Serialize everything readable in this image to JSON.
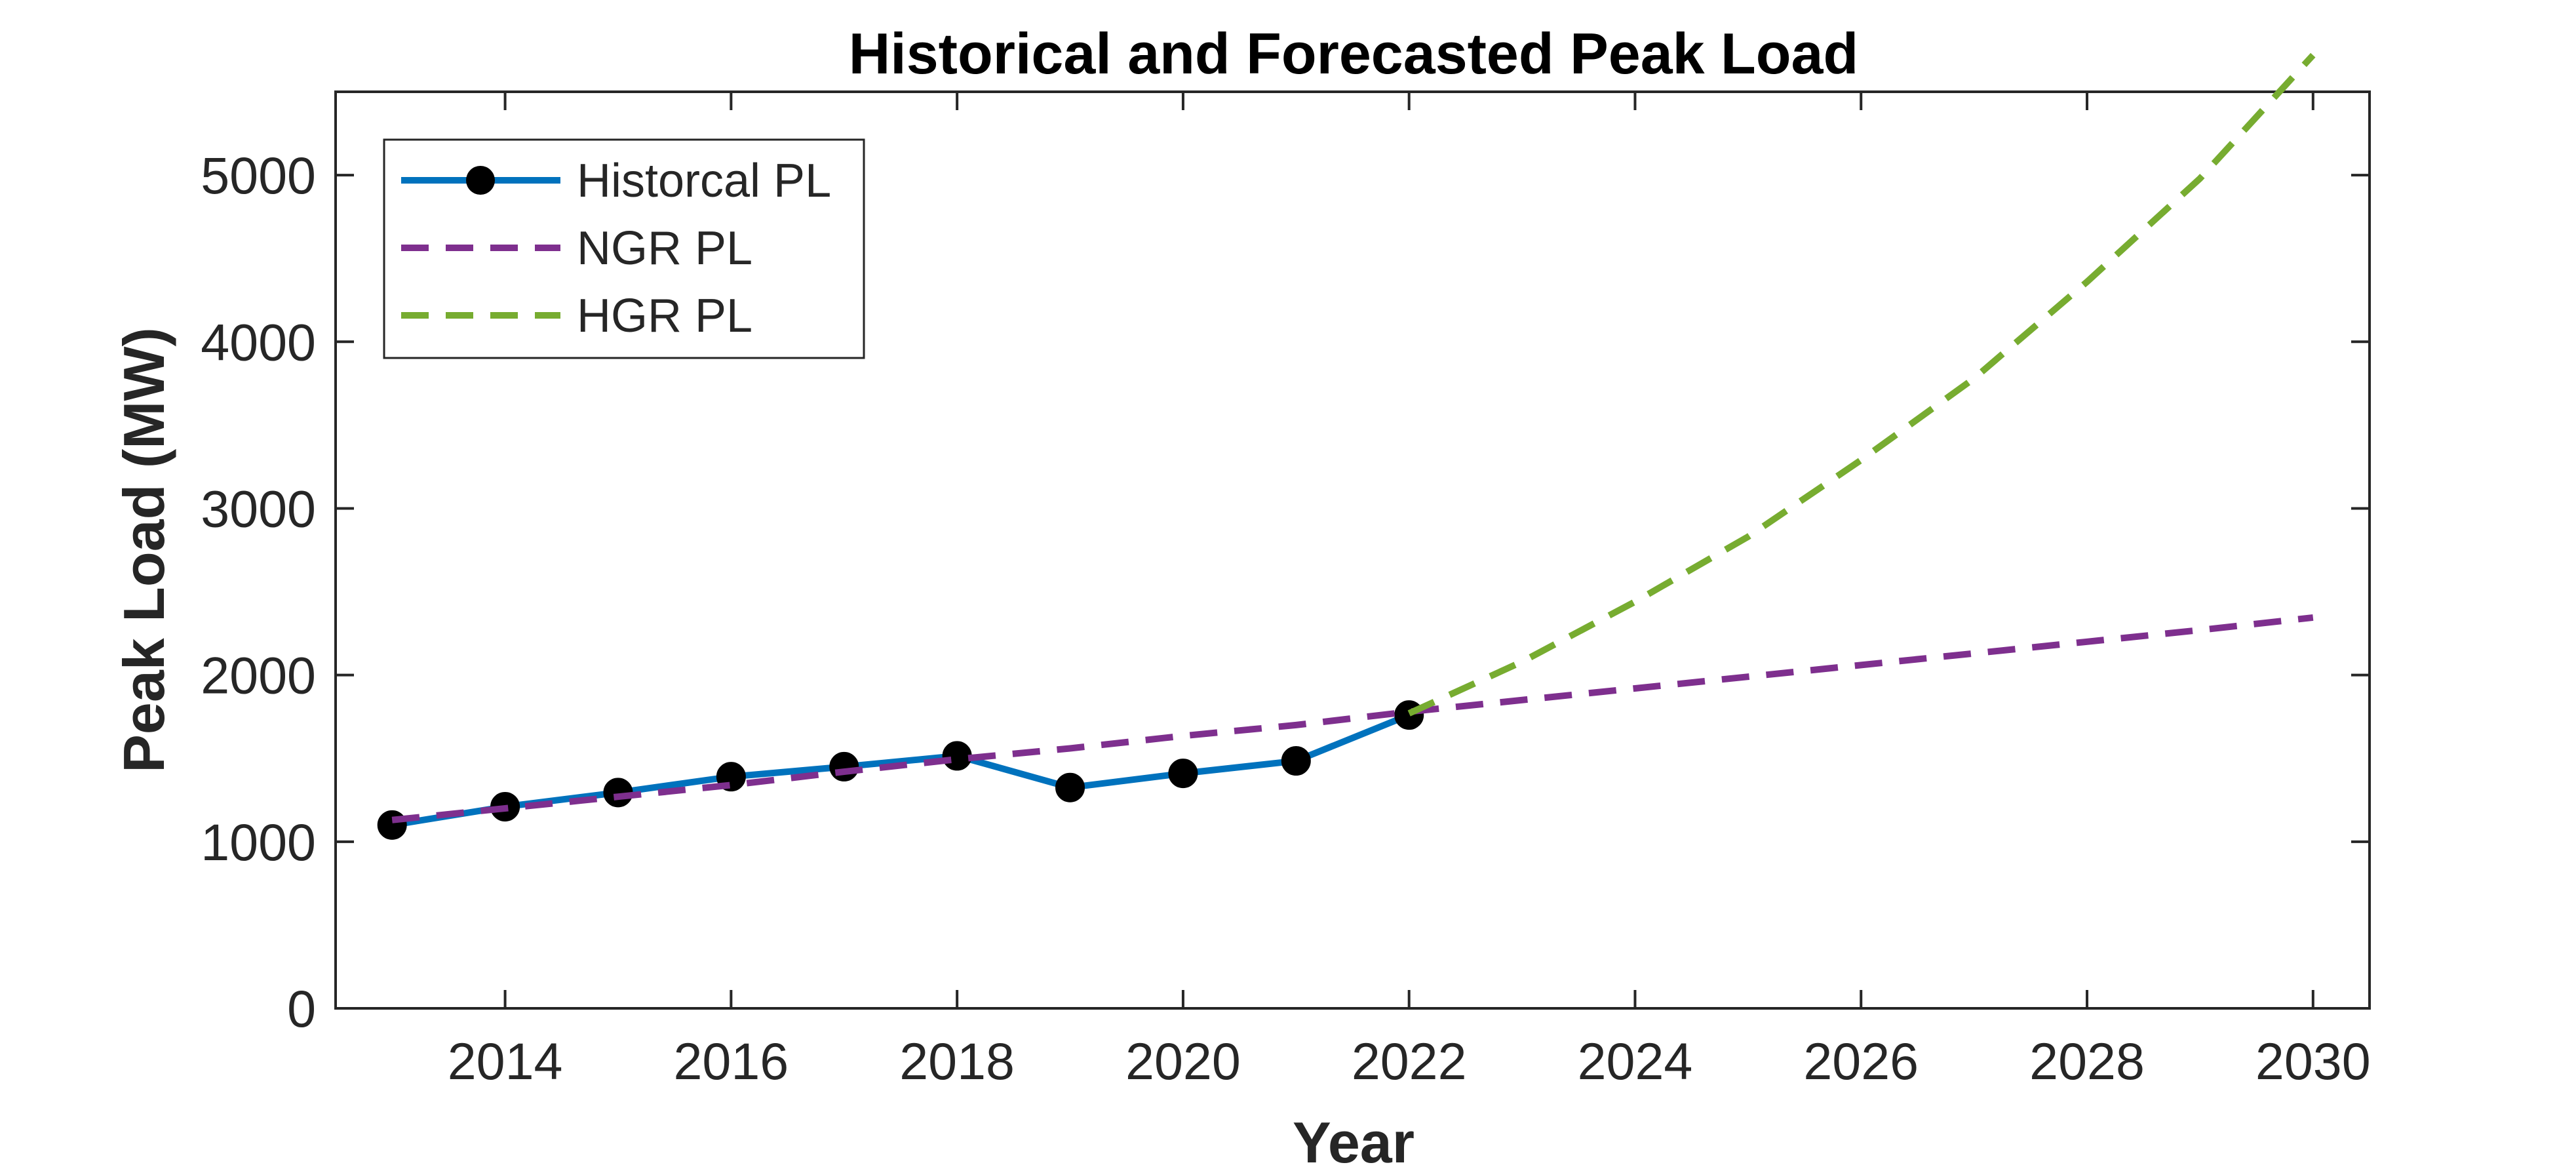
{
  "chart_data": {
    "type": "line",
    "title": "Historical and Forecasted Peak Load",
    "xlabel": "Year",
    "ylabel": "Peak Load (MW)",
    "xlim": [
      2012.5,
      2030.5
    ],
    "ylim": [
      0,
      5500
    ],
    "xticks": [
      2014,
      2016,
      2018,
      2020,
      2022,
      2024,
      2026,
      2028,
      2030
    ],
    "yticks": [
      0,
      1000,
      2000,
      3000,
      4000,
      5000
    ],
    "grid": false,
    "legend_position": "top-left",
    "series": [
      {
        "name": "Historcal PL",
        "color": "#0072BD",
        "style": "solid",
        "marker": "circle",
        "x": [
          2013,
          2014,
          2015,
          2016,
          2017,
          2018,
          2019,
          2020,
          2021,
          2022
        ],
        "y": [
          1100,
          1210,
          1295,
          1390,
          1450,
          1515,
          1325,
          1410,
          1485,
          1760
        ]
      },
      {
        "name": "NGR PL",
        "color": "#7E2F8E",
        "style": "dashed",
        "marker": "none",
        "x": [
          2013,
          2014,
          2015,
          2016,
          2017,
          2018,
          2019,
          2020,
          2021,
          2022,
          2023,
          2024,
          2025,
          2026,
          2027,
          2028,
          2029,
          2030
        ],
        "y": [
          1130,
          1200,
          1270,
          1340,
          1420,
          1495,
          1560,
          1635,
          1700,
          1780,
          1850,
          1920,
          1990,
          2060,
          2130,
          2200,
          2270,
          2345
        ]
      },
      {
        "name": "HGR PL",
        "color": "#77AC30",
        "style": "dashed",
        "marker": "none",
        "x": [
          2022,
          2023,
          2024,
          2025,
          2026,
          2027,
          2028,
          2029,
          2030
        ],
        "y": [
          1770,
          2080,
          2440,
          2830,
          3290,
          3780,
          4360,
          4980,
          5720
        ]
      }
    ]
  }
}
